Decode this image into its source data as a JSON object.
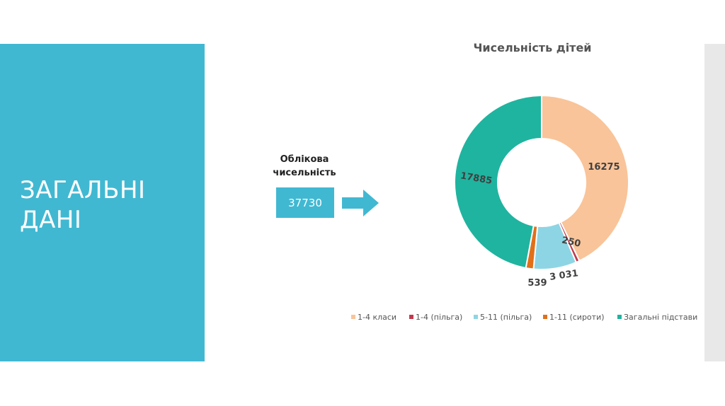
{
  "slide": {
    "title": "ЗАГАЛЬНІ ДАНІ"
  },
  "headcount": {
    "label": "Облікова чисельність",
    "value": "37730"
  },
  "colors": {
    "accent": "#41b8d2",
    "arrow": "#41b8d2"
  },
  "chart_data": {
    "type": "pie",
    "variant": "doughnut",
    "title": "Чисельність дітей",
    "categories": [
      "1-4 класи",
      "1-4 (пільга)",
      "5-11 (пільга)",
      "1-11 (сироти)",
      "Загальні підстави"
    ],
    "values": [
      16275,
      250,
      3031,
      539,
      17885
    ],
    "data_labels": [
      "16275",
      "250",
      "3 031",
      "539",
      "17885"
    ],
    "colors": [
      "#f9c499",
      "#c0394b",
      "#8dd5e4",
      "#e0701a",
      "#1fb49f"
    ],
    "legend": "bottom"
  }
}
